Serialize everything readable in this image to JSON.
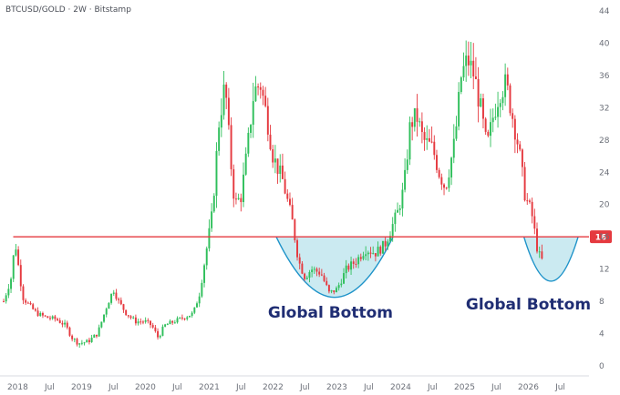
{
  "header": {
    "title": "BTCUSD/GOLD · 2W · Bitstamp"
  },
  "chart_data": {
    "type": "candlestick",
    "title": "BTCUSD/GOLD · 2W · Bitstamp",
    "ylim": [
      0,
      44
    ],
    "y_ticks": [
      0,
      4,
      8,
      12,
      16,
      20,
      24,
      28,
      32,
      36,
      40,
      44
    ],
    "x_ticks": [
      {
        "label": "2018",
        "t": 2018.0
      },
      {
        "label": "Jul",
        "t": 2018.5
      },
      {
        "label": "2019",
        "t": 2019.0
      },
      {
        "label": "Jul",
        "t": 2019.5
      },
      {
        "label": "2020",
        "t": 2020.0
      },
      {
        "label": "Jul",
        "t": 2020.5
      },
      {
        "label": "2021",
        "t": 2021.0
      },
      {
        "label": "Jul",
        "t": 2021.5
      },
      {
        "label": "2022",
        "t": 2022.0
      },
      {
        "label": "Jul",
        "t": 2022.5
      },
      {
        "label": "2023",
        "t": 2023.0
      },
      {
        "label": "Jul",
        "t": 2023.5
      },
      {
        "label": "2024",
        "t": 2024.0
      },
      {
        "label": "Jul",
        "t": 2024.5
      },
      {
        "label": "2025",
        "t": 2025.0
      },
      {
        "label": "Jul",
        "t": 2025.5
      },
      {
        "label": "2026",
        "t": 2026.0
      },
      {
        "label": "Jul",
        "t": 2026.5
      }
    ],
    "price_path": [
      [
        2017.78,
        8
      ],
      [
        2017.9,
        11
      ],
      [
        2017.96,
        15.5
      ],
      [
        2018.0,
        13
      ],
      [
        2018.08,
        8.5
      ],
      [
        2018.18,
        7.5
      ],
      [
        2018.3,
        6.5
      ],
      [
        2018.45,
        6
      ],
      [
        2018.6,
        5.8
      ],
      [
        2018.75,
        5
      ],
      [
        2018.85,
        3.5
      ],
      [
        2018.95,
        2.8
      ],
      [
        2019.1,
        3.0
      ],
      [
        2019.25,
        4.0
      ],
      [
        2019.4,
        7.5
      ],
      [
        2019.5,
        9.5
      ],
      [
        2019.58,
        8.0
      ],
      [
        2019.7,
        6.5
      ],
      [
        2019.85,
        5.5
      ],
      [
        2020.0,
        5.5
      ],
      [
        2020.1,
        5.0
      ],
      [
        2020.2,
        3.5
      ],
      [
        2020.3,
        5.0
      ],
      [
        2020.45,
        5.5
      ],
      [
        2020.6,
        6.0
      ],
      [
        2020.75,
        6.5
      ],
      [
        2020.85,
        9
      ],
      [
        2020.95,
        14
      ],
      [
        2021.05,
        19
      ],
      [
        2021.15,
        30
      ],
      [
        2021.25,
        35
      ],
      [
        2021.33,
        26
      ],
      [
        2021.4,
        20
      ],
      [
        2021.5,
        21
      ],
      [
        2021.6,
        27
      ],
      [
        2021.7,
        34
      ],
      [
        2021.8,
        35
      ],
      [
        2021.9,
        31
      ],
      [
        2022.0,
        26
      ],
      [
        2022.15,
        23
      ],
      [
        2022.3,
        18
      ],
      [
        2022.4,
        13
      ],
      [
        2022.5,
        11
      ],
      [
        2022.6,
        12
      ],
      [
        2022.75,
        11.5
      ],
      [
        2022.88,
        9
      ],
      [
        2023.0,
        9.5
      ],
      [
        2023.15,
        12
      ],
      [
        2023.3,
        13
      ],
      [
        2023.45,
        14.5
      ],
      [
        2023.6,
        14
      ],
      [
        2023.75,
        15
      ],
      [
        2023.85,
        17
      ],
      [
        2023.95,
        19
      ],
      [
        2024.05,
        22
      ],
      [
        2024.15,
        30
      ],
      [
        2024.25,
        31
      ],
      [
        2024.35,
        28
      ],
      [
        2024.5,
        27
      ],
      [
        2024.6,
        24
      ],
      [
        2024.7,
        22
      ],
      [
        2024.85,
        28
      ],
      [
        2024.95,
        36
      ],
      [
        2025.05,
        38
      ],
      [
        2025.15,
        36
      ],
      [
        2025.25,
        32
      ],
      [
        2025.35,
        27
      ],
      [
        2025.45,
        31
      ],
      [
        2025.55,
        34
      ],
      [
        2025.65,
        35
      ],
      [
        2025.75,
        31
      ],
      [
        2025.85,
        27
      ],
      [
        2025.95,
        21
      ],
      [
        2026.05,
        19
      ],
      [
        2026.15,
        14
      ],
      [
        2026.22,
        13
      ]
    ],
    "resistance_level": 16,
    "level_tag": "16",
    "annotations": [
      {
        "text": "Global Bottom",
        "x": 2022.9,
        "y": 6
      },
      {
        "text": "Global Bottom",
        "x": 2026.0,
        "y": 7
      }
    ],
    "bowls": [
      {
        "x0": 2022.05,
        "x1": 2023.88,
        "y_top": 16,
        "y_bottom": 8.5
      },
      {
        "x0": 2025.93,
        "x1": 2026.78,
        "y_top": 16,
        "y_bottom": 10.5
      }
    ],
    "colors": {
      "up": "#2fbf5b",
      "down": "#e5393f",
      "level_line": "#e5393f",
      "bowl_fill": "#b9e3ec",
      "bowl_stroke": "#1e93c9",
      "annotation": "#1f2d73",
      "tag_bg": "#e5393f"
    }
  }
}
